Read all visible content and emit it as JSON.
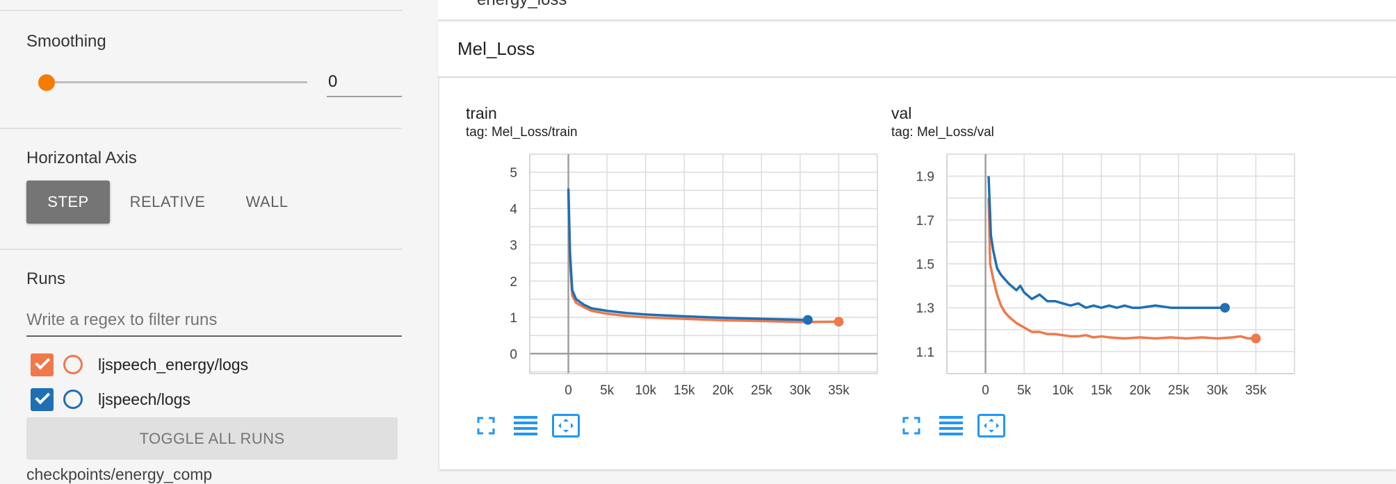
{
  "sidebar": {
    "smoothing": {
      "label": "Smoothing",
      "value": "0",
      "slider_level": 0
    },
    "horizontal_axis": {
      "label": "Horizontal Axis",
      "options": [
        "STEP",
        "RELATIVE",
        "WALL"
      ],
      "selected": "STEP"
    },
    "runs": {
      "label": "Runs",
      "filter_placeholder": "Write a regex to filter runs",
      "items": [
        {
          "name": "ljspeech_energy/logs",
          "checked": true,
          "color": "#f0784a"
        },
        {
          "name": "ljspeech/logs",
          "checked": true,
          "color": "#1f6fb4"
        }
      ],
      "toggle_label": "TOGGLE ALL RUNS",
      "next_item": "checkpoints/energy_comp"
    }
  },
  "main": {
    "top_card_text": "energy_loss",
    "group_title": "Mel_Loss",
    "icons": [
      "fullscreen-icon",
      "log-scale-icon",
      "fit-domain-icon"
    ]
  },
  "chart_data": [
    {
      "type": "line",
      "title": "train",
      "tag": "tag: Mel_Loss/train",
      "xlabel": "",
      "ylabel": "",
      "xlim": [
        -5000,
        40000
      ],
      "ylim": [
        -0.55,
        5.5
      ],
      "x_ticks": [
        0,
        5000,
        10000,
        15000,
        20000,
        25000,
        30000,
        35000
      ],
      "x_tick_labels": [
        "0",
        "5k",
        "10k",
        "15k",
        "20k",
        "25k",
        "30k",
        "35k"
      ],
      "y_ticks": [
        0,
        1,
        2,
        3,
        4,
        5
      ],
      "y_tick_labels": [
        "0",
        "1",
        "2",
        "3",
        "4",
        "5"
      ],
      "grid": true,
      "series": [
        {
          "color": "#f0784a",
          "x": [
            0,
            200,
            500,
            1000,
            2000,
            3000,
            5000,
            7500,
            10000,
            15000,
            20000,
            25000,
            30000,
            35000
          ],
          "y": [
            4.4,
            2.6,
            1.6,
            1.4,
            1.28,
            1.18,
            1.1,
            1.04,
            1.0,
            0.96,
            0.92,
            0.9,
            0.87,
            0.88
          ]
        },
        {
          "color": "#1f6fb4",
          "x": [
            0,
            200,
            500,
            1000,
            2000,
            3000,
            5000,
            7500,
            10000,
            15000,
            20000,
            25000,
            31000
          ],
          "y": [
            4.55,
            2.8,
            1.75,
            1.5,
            1.35,
            1.25,
            1.18,
            1.12,
            1.08,
            1.03,
            0.99,
            0.96,
            0.93
          ]
        }
      ]
    },
    {
      "type": "line",
      "title": "val",
      "tag": "tag: Mel_Loss/val",
      "xlabel": "",
      "ylabel": "",
      "xlim": [
        -5000,
        40000
      ],
      "ylim": [
        1.0,
        2.0
      ],
      "x_ticks": [
        0,
        5000,
        10000,
        15000,
        20000,
        25000,
        30000,
        35000
      ],
      "x_tick_labels": [
        "0",
        "5k",
        "10k",
        "15k",
        "20k",
        "25k",
        "30k",
        "35k"
      ],
      "y_ticks": [
        1.1,
        1.3,
        1.5,
        1.7,
        1.9
      ],
      "y_tick_labels": [
        "1.1",
        "1.3",
        "1.5",
        "1.7",
        "1.9"
      ],
      "grid": true,
      "series": [
        {
          "color": "#f0784a",
          "x": [
            400,
            600,
            1000,
            1500,
            2000,
            2500,
            3000,
            4000,
            5000,
            6000,
            7000,
            8000,
            9000,
            10000,
            11000,
            12000,
            13000,
            14000,
            15000,
            16000,
            18000,
            20000,
            22000,
            24000,
            26000,
            28000,
            30000,
            32000,
            33000,
            34000,
            35000
          ],
          "y": [
            1.8,
            1.5,
            1.43,
            1.36,
            1.31,
            1.28,
            1.26,
            1.23,
            1.21,
            1.19,
            1.19,
            1.18,
            1.18,
            1.175,
            1.17,
            1.17,
            1.175,
            1.165,
            1.17,
            1.165,
            1.16,
            1.165,
            1.16,
            1.165,
            1.16,
            1.165,
            1.16,
            1.165,
            1.17,
            1.16,
            1.16
          ]
        },
        {
          "color": "#1f6fb4",
          "x": [
            400,
            700,
            1000,
            1500,
            2000,
            3000,
            4000,
            4500,
            5000,
            6000,
            7000,
            8000,
            9000,
            10000,
            11000,
            12000,
            13000,
            14000,
            15000,
            16000,
            17000,
            18000,
            19000,
            20000,
            22000,
            24000,
            26000,
            28000,
            30000,
            31000
          ],
          "y": [
            1.9,
            1.63,
            1.56,
            1.48,
            1.45,
            1.41,
            1.38,
            1.4,
            1.37,
            1.34,
            1.36,
            1.33,
            1.33,
            1.32,
            1.31,
            1.32,
            1.3,
            1.31,
            1.3,
            1.31,
            1.3,
            1.31,
            1.3,
            1.3,
            1.31,
            1.3,
            1.3,
            1.3,
            1.3,
            1.3
          ]
        }
      ]
    }
  ]
}
